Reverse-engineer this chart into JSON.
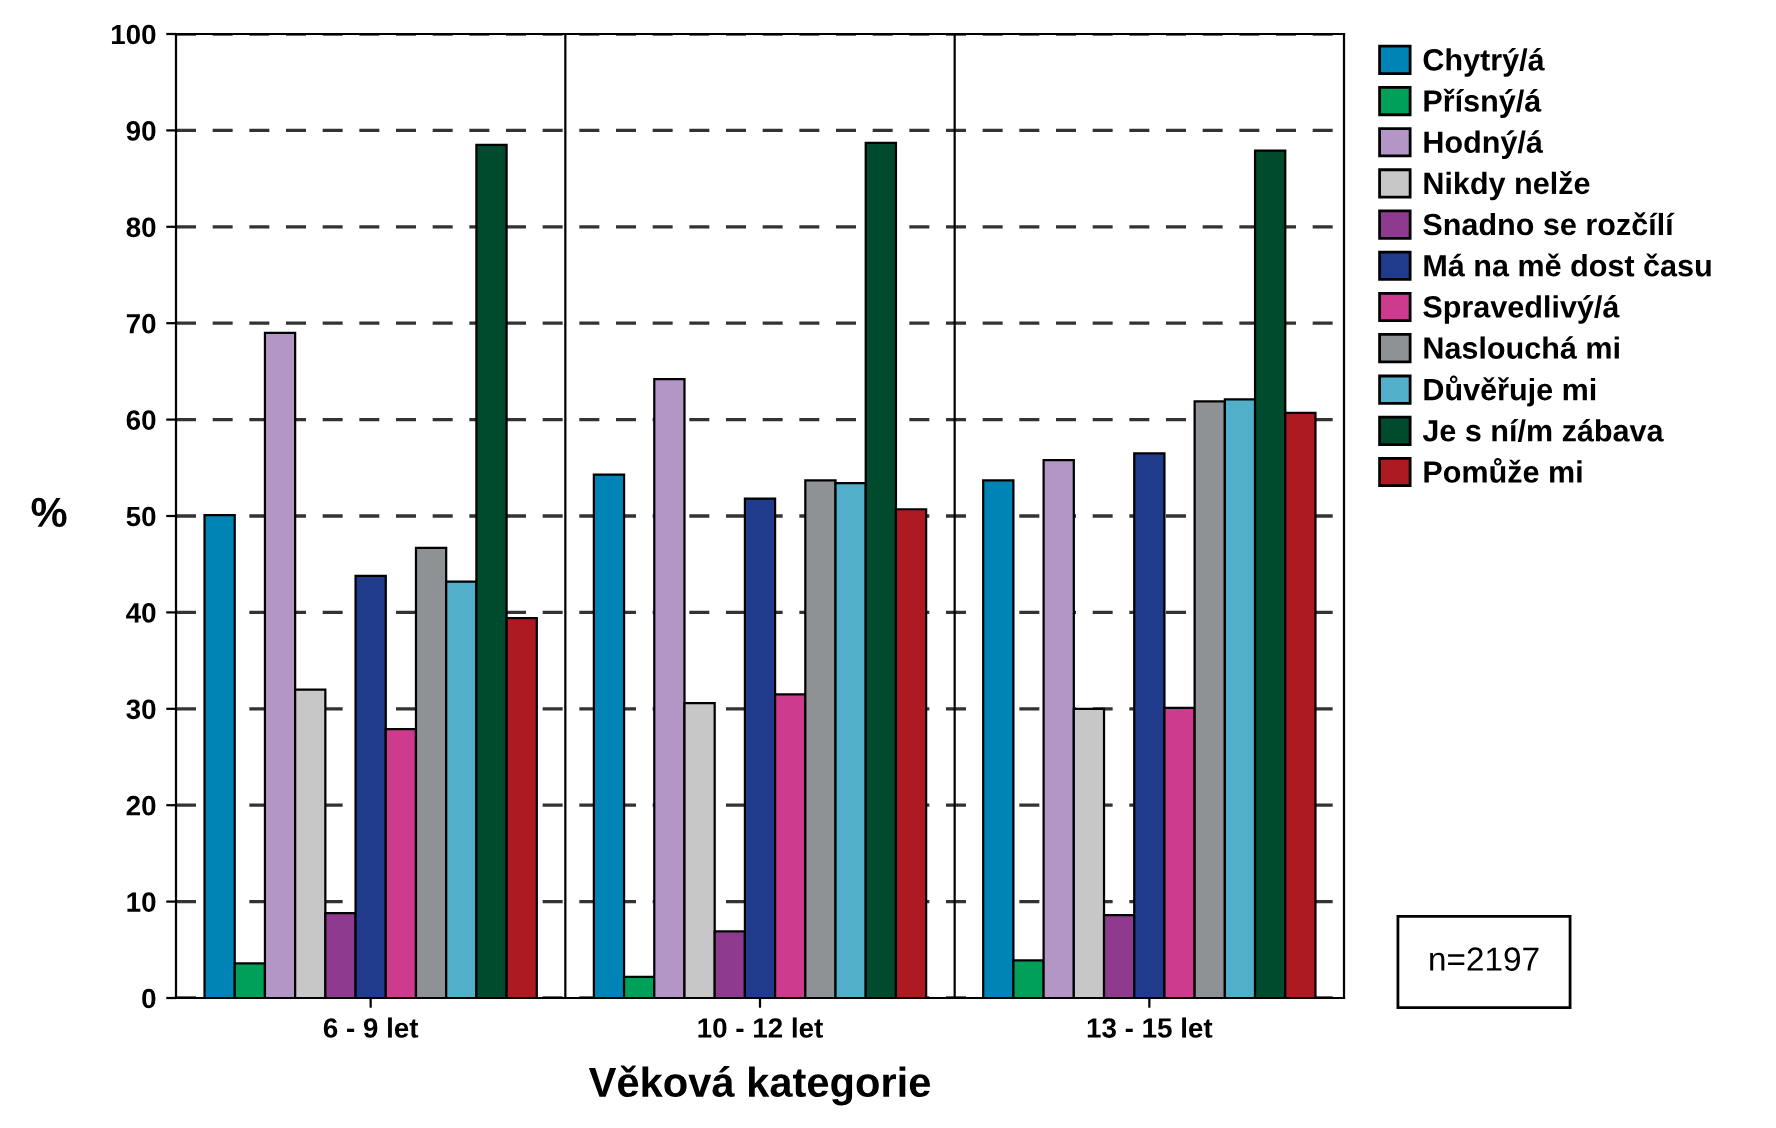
{
  "chart_data": {
    "type": "bar",
    "xlabel": "Věková kategorie",
    "ylabel": "%",
    "categories": [
      "6 - 9 let",
      "10 - 12 let",
      "13 - 15 let"
    ],
    "series": [
      {
        "name": "Chytrý/á",
        "color": "#0083b5",
        "values": [
          50.1,
          54.3,
          53.7
        ]
      },
      {
        "name": "Přísný/á",
        "color": "#00a05a",
        "values": [
          3.6,
          2.2,
          3.9
        ]
      },
      {
        "name": "Hodný/á",
        "color": "#b396c6",
        "values": [
          69.0,
          64.2,
          55.8
        ]
      },
      {
        "name": "Nikdy nelže",
        "color": "#c6c7c6",
        "values": [
          32.0,
          30.6,
          30.0
        ]
      },
      {
        "name": "Snadno se rozčílí",
        "color": "#8e3a8e",
        "values": [
          8.8,
          6.9,
          8.6
        ]
      },
      {
        "name": "Má na mě dost času",
        "color": "#213b8c",
        "values": [
          43.8,
          51.8,
          56.5
        ]
      },
      {
        "name": "Spravedlivý/á",
        "color": "#cc3b8e",
        "values": [
          27.9,
          31.5,
          30.1
        ]
      },
      {
        "name": "Naslouchá mi",
        "color": "#8e9294",
        "values": [
          46.7,
          53.7,
          61.9
        ]
      },
      {
        "name": "Důvěřuje mi",
        "color": "#52afca",
        "values": [
          43.2,
          53.4,
          62.1
        ]
      },
      {
        "name": "Je s ní/m zábava",
        "color": "#004b2d",
        "values": [
          88.5,
          88.7,
          87.9
        ]
      },
      {
        "name": "Pomůže mi",
        "color": "#ae1a21",
        "values": [
          39.4,
          50.7,
          60.7
        ]
      }
    ],
    "ylim": [
      0,
      100
    ],
    "yticks": [
      0,
      10,
      20,
      30,
      40,
      50,
      60,
      70,
      80,
      90,
      100
    ],
    "grid": "y",
    "legend": "top right",
    "annotations": [
      "n=2197"
    ]
  }
}
